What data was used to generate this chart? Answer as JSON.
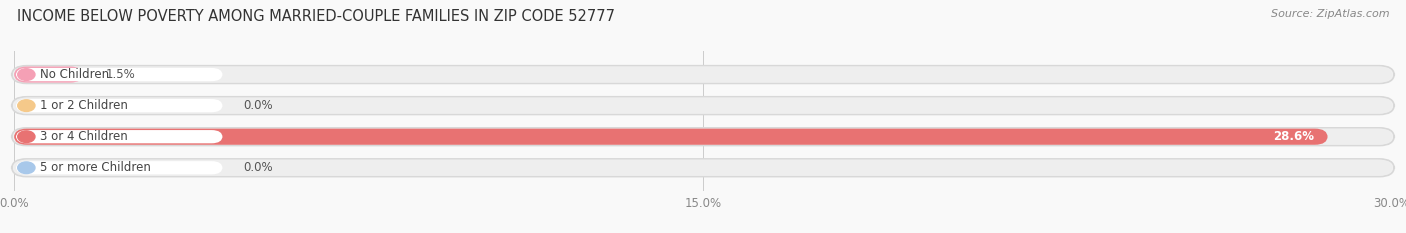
{
  "title": "INCOME BELOW POVERTY AMONG MARRIED-COUPLE FAMILIES IN ZIP CODE 52777",
  "source": "Source: ZipAtlas.com",
  "categories": [
    "No Children",
    "1 or 2 Children",
    "3 or 4 Children",
    "5 or more Children"
  ],
  "values": [
    1.5,
    0.0,
    28.6,
    0.0
  ],
  "bar_colors": [
    "#f5a0b5",
    "#f5c98a",
    "#e87272",
    "#a8c8ea"
  ],
  "track_color": "#eeeeee",
  "track_border_color": "#dddddd",
  "xlim": [
    0,
    30.0
  ],
  "xticks": [
    0.0,
    15.0,
    30.0
  ],
  "xtick_labels": [
    "0.0%",
    "15.0%",
    "30.0%"
  ],
  "background_color": "#f9f9f9",
  "title_fontsize": 10.5,
  "source_fontsize": 8,
  "bar_height": 0.52,
  "label_fontsize": 8.5,
  "value_fontsize": 8.5
}
